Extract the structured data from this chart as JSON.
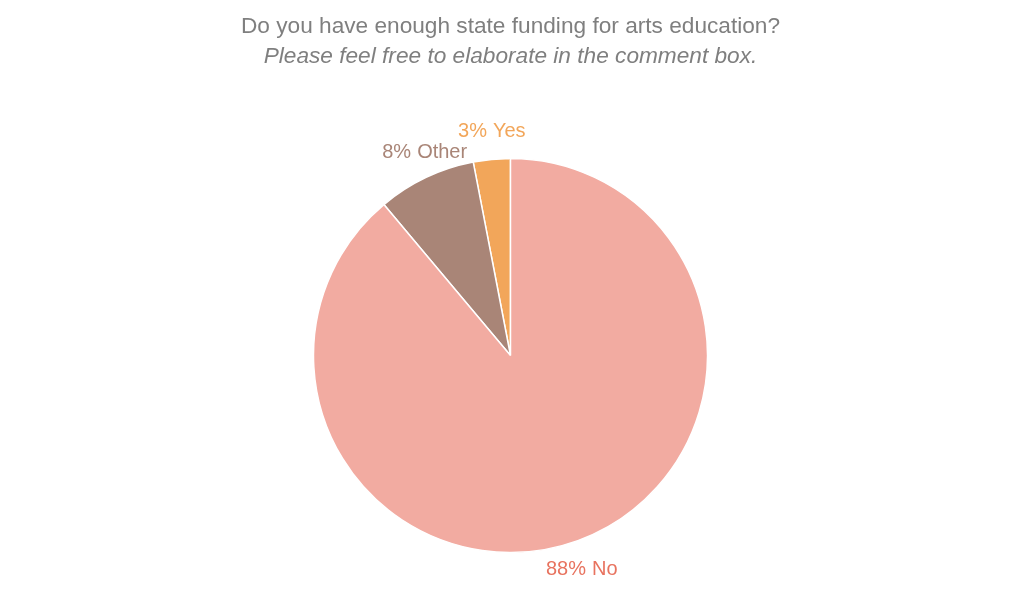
{
  "chart_data": {
    "type": "pie",
    "title": "Do you have enough state funding for arts education?",
    "subtitle": "Please feel free to elaborate in the comment box.",
    "categories": [
      "Yes",
      "Other",
      "No"
    ],
    "values": [
      3,
      8,
      88
    ],
    "colors": [
      "#f2a65a",
      "#a98577",
      "#f2aba1"
    ],
    "value_labels": [
      "3%",
      "8%",
      "88%"
    ]
  }
}
